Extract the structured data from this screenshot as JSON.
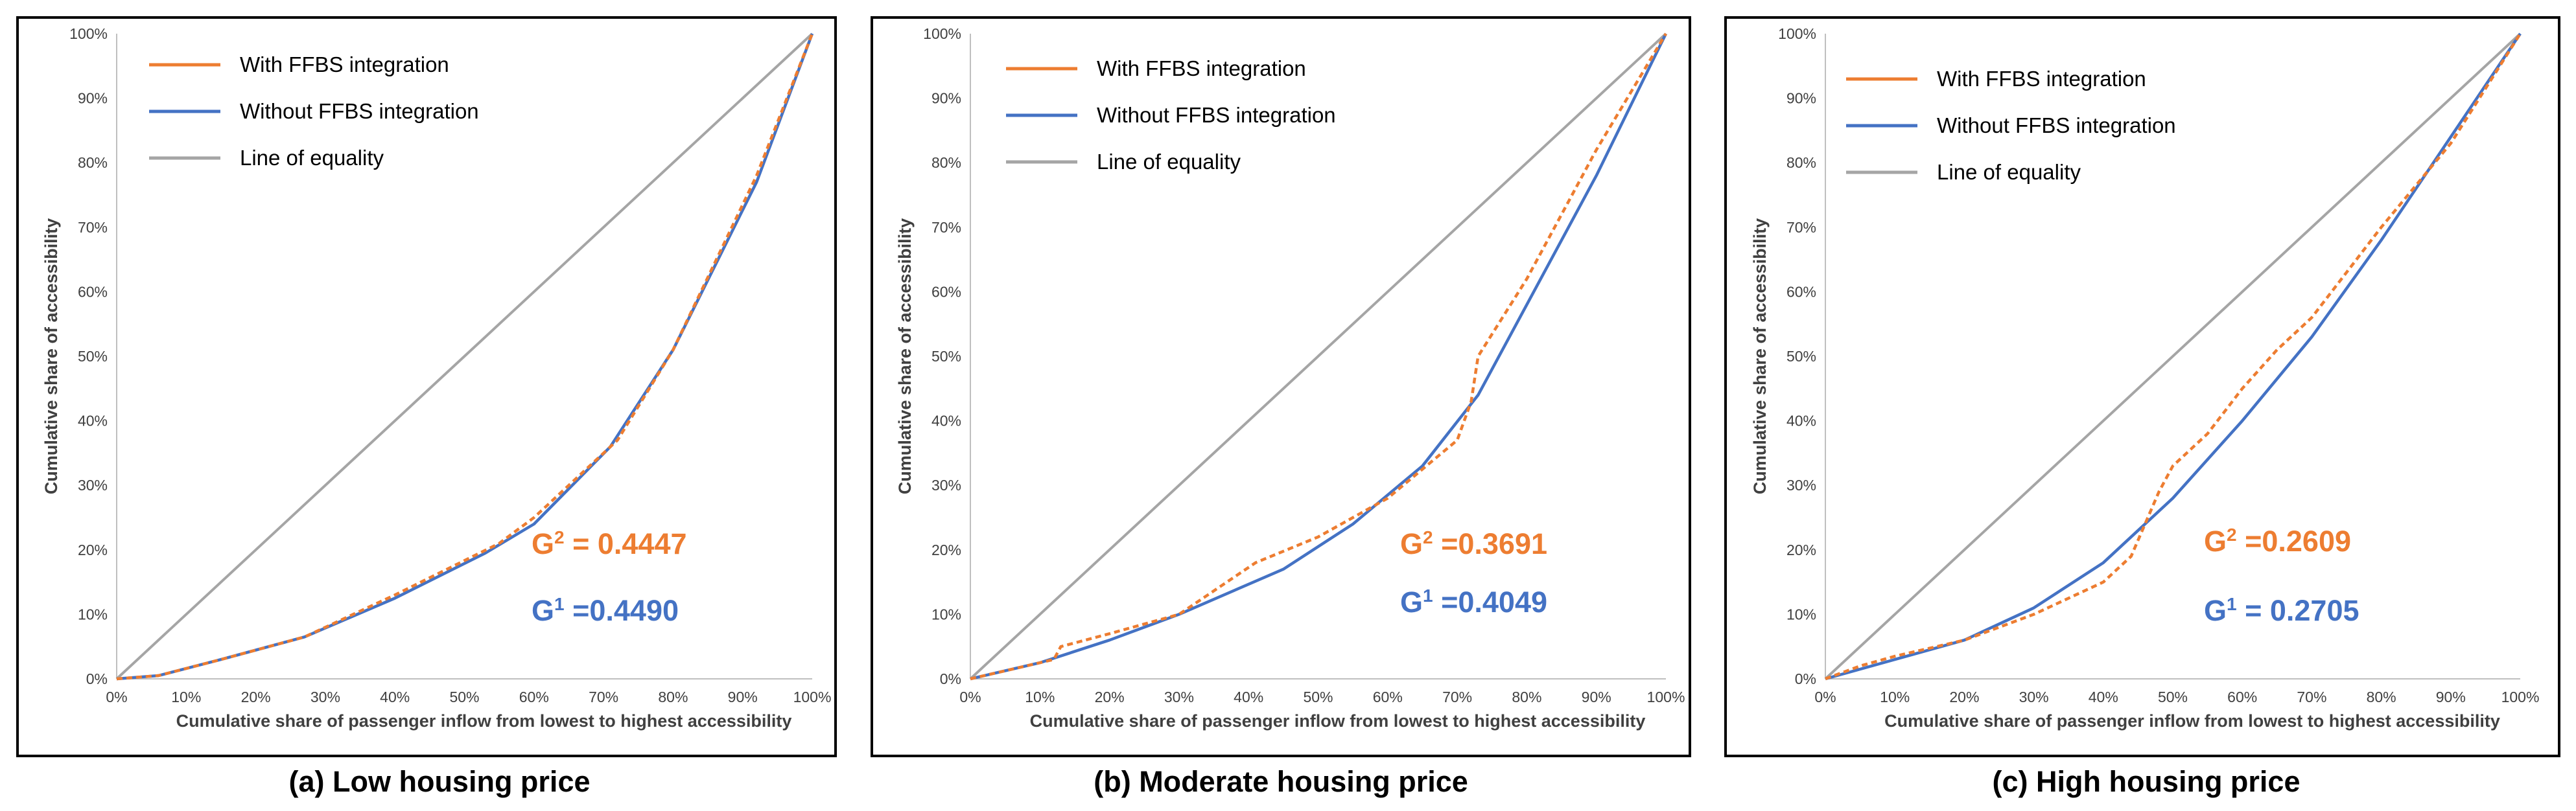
{
  "colors": {
    "with": "#ed7d31",
    "without": "#4472c4",
    "equality": "#a5a5a5"
  },
  "chart_data": [
    {
      "type": "line",
      "caption": "(a) Low housing price",
      "xlabel": "Cumulative share of passenger inflow from lowest to highest accessibility",
      "ylabel": "Cumulative share of accessibility",
      "xticks": [
        "0%",
        "10%",
        "20%",
        "30%",
        "40%",
        "50%",
        "60%",
        "70%",
        "80%",
        "90%",
        "100%"
      ],
      "yticks": [
        "0%",
        "10%",
        "20%",
        "30%",
        "40%",
        "50%",
        "60%",
        "70%",
        "80%",
        "90%",
        "100%"
      ],
      "xlim": [
        0,
        100
      ],
      "ylim": [
        0,
        100
      ],
      "legend": [
        "With FFBS integration",
        "Without FFBS integration",
        "Line of equality"
      ],
      "gini": [
        {
          "label": "G",
          "sup": "2",
          "value": "= 0.4447",
          "series": "with"
        },
        {
          "label": "G",
          "sup": "1",
          "value": "=0.4490",
          "series": "without"
        }
      ],
      "series": [
        {
          "name": "With FFBS integration",
          "style": "dashed",
          "x": [
            0,
            6,
            15,
            27,
            40,
            55,
            60,
            72,
            80,
            92,
            100
          ],
          "y": [
            0,
            0.5,
            3,
            6.5,
            13,
            21,
            25,
            37,
            51,
            78,
            100
          ]
        },
        {
          "name": "Without FFBS integration",
          "style": "solid",
          "x": [
            0,
            6,
            15,
            27,
            40,
            53,
            60,
            71,
            80,
            92,
            100
          ],
          "y": [
            0,
            0.5,
            3,
            6.5,
            12.5,
            19.5,
            24,
            36,
            51,
            77,
            100
          ]
        },
        {
          "name": "Line of equality",
          "style": "solid",
          "x": [
            0,
            100
          ],
          "y": [
            0,
            100
          ]
        }
      ]
    },
    {
      "type": "line",
      "caption": "(b) Moderate housing price",
      "xlabel": "Cumulative share of passenger inflow from lowest to highest accessibility",
      "ylabel": "Cumulative share of accessibility",
      "xticks": [
        "0%",
        "10%",
        "20%",
        "30%",
        "40%",
        "50%",
        "60%",
        "70%",
        "80%",
        "90%",
        "100%"
      ],
      "yticks": [
        "0%",
        "10%",
        "20%",
        "30%",
        "40%",
        "50%",
        "60%",
        "70%",
        "80%",
        "90%",
        "100%"
      ],
      "xlim": [
        0,
        100
      ],
      "ylim": [
        0,
        100
      ],
      "legend": [
        "With FFBS integration",
        "Without FFBS integration",
        "Line of equality"
      ],
      "gini": [
        {
          "label": "G",
          "sup": "2",
          "value": "=0.3691",
          "series": "with"
        },
        {
          "label": "G",
          "sup": "1",
          "value": "=0.4049",
          "series": "without"
        }
      ],
      "series": [
        {
          "name": "With FFBS integration",
          "style": "dashed",
          "x": [
            0,
            12,
            13,
            20,
            30,
            41,
            50,
            60,
            70,
            72,
            73,
            80,
            85,
            90,
            100
          ],
          "y": [
            0,
            3,
            5,
            7,
            10,
            18,
            22,
            28,
            37,
            43,
            50,
            62,
            72,
            82,
            100
          ]
        },
        {
          "name": "Without FFBS integration",
          "style": "solid",
          "x": [
            0,
            10,
            20,
            30,
            45,
            55,
            65,
            73,
            80,
            90,
            100
          ],
          "y": [
            0,
            2.5,
            6,
            10,
            17,
            24,
            33,
            44,
            58,
            78,
            100
          ]
        },
        {
          "name": "Line of equality",
          "style": "solid",
          "x": [
            0,
            100
          ],
          "y": [
            0,
            100
          ]
        }
      ]
    },
    {
      "type": "line",
      "caption": "(c) High housing price",
      "xlabel": "Cumulative share of passenger inflow from lowest to highest accessibility",
      "ylabel": "Cumulative share of accessibility",
      "xticks": [
        "0%",
        "10%",
        "20%",
        "30%",
        "40%",
        "50%",
        "60%",
        "70%",
        "80%",
        "90%",
        "100%"
      ],
      "yticks": [
        "0%",
        "10%",
        "20%",
        "30%",
        "40%",
        "50%",
        "60%",
        "70%",
        "80%",
        "90%",
        "100%"
      ],
      "xlim": [
        0,
        100
      ],
      "ylim": [
        0,
        100
      ],
      "legend": [
        "With FFBS integration",
        "Without FFBS integration",
        "Line of equality"
      ],
      "gini": [
        {
          "label": "G",
          "sup": "2",
          "value": "=0.2609",
          "series": "with"
        },
        {
          "label": "G",
          "sup": "1",
          "value": "= 0.2705",
          "series": "without"
        }
      ],
      "series": [
        {
          "name": "With FFBS integration",
          "style": "dashed",
          "x": [
            0,
            5,
            10,
            20,
            30,
            40,
            44,
            48,
            50,
            55,
            60,
            65,
            70,
            80,
            90,
            100
          ],
          "y": [
            0,
            2,
            3.5,
            6,
            10,
            15,
            19,
            29,
            33,
            38,
            45,
            51,
            56,
            70,
            83,
            100
          ]
        },
        {
          "name": "Without FFBS integration",
          "style": "solid",
          "x": [
            0,
            10,
            20,
            30,
            40,
            50,
            60,
            70,
            80,
            90,
            100
          ],
          "y": [
            0,
            3,
            6,
            11,
            18,
            28,
            40,
            53,
            68,
            84,
            100
          ]
        },
        {
          "name": "Line of equality",
          "style": "solid",
          "x": [
            0,
            100
          ],
          "y": [
            0,
            100
          ]
        }
      ]
    }
  ]
}
